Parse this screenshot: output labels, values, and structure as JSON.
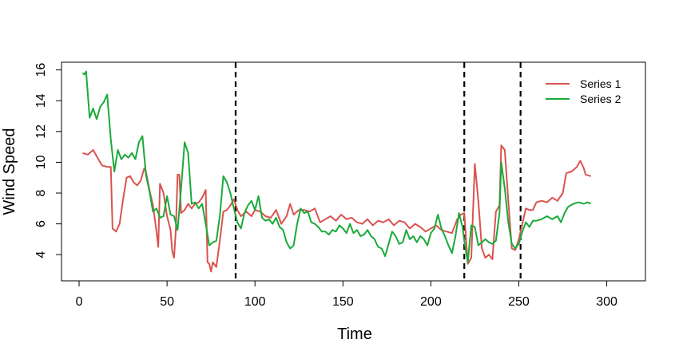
{
  "chart_data": {
    "type": "line",
    "title": "",
    "xlabel": "Time",
    "ylabel": "Wind Speed",
    "xlim": [
      -10,
      322
    ],
    "ylim": [
      2.3,
      16.5
    ],
    "x_ticks": [
      0,
      50,
      100,
      150,
      200,
      250,
      300
    ],
    "y_ticks": [
      4,
      6,
      8,
      10,
      12,
      14,
      16
    ],
    "grid": false,
    "legend_position": "top-right",
    "vlines": [
      89,
      219,
      251
    ],
    "vline_style": "dashed",
    "series": [
      {
        "name": "Series 1",
        "color": "#d9534f",
        "points": [
          [
            2,
            10.6
          ],
          [
            5,
            10.5
          ],
          [
            8,
            10.8
          ],
          [
            10,
            10.4
          ],
          [
            13,
            9.8
          ],
          [
            16,
            9.7
          ],
          [
            18,
            9.7
          ],
          [
            19,
            5.7
          ],
          [
            21,
            5.5
          ],
          [
            23,
            6.0
          ],
          [
            25,
            7.6
          ],
          [
            27,
            9.0
          ],
          [
            29,
            9.1
          ],
          [
            31,
            8.7
          ],
          [
            33,
            8.5
          ],
          [
            35,
            8.8
          ],
          [
            37,
            9.6
          ],
          [
            38,
            9.4
          ],
          [
            40,
            8.2
          ],
          [
            42,
            7.2
          ],
          [
            44,
            5.5
          ],
          [
            45,
            4.5
          ],
          [
            46,
            8.6
          ],
          [
            48,
            8.0
          ],
          [
            50,
            6.5
          ],
          [
            52,
            5.6
          ],
          [
            53,
            4.2
          ],
          [
            54,
            3.8
          ],
          [
            55,
            5.6
          ],
          [
            56,
            9.2
          ],
          [
            57,
            9.2
          ],
          [
            58,
            6.7
          ],
          [
            60,
            6.9
          ],
          [
            62,
            7.3
          ],
          [
            64,
            7.0
          ],
          [
            66,
            7.3
          ],
          [
            68,
            7.4
          ],
          [
            70,
            7.7
          ],
          [
            72,
            8.2
          ],
          [
            73,
            3.5
          ],
          [
            74,
            3.4
          ],
          [
            75,
            2.9
          ],
          [
            76,
            3.5
          ],
          [
            78,
            3.2
          ],
          [
            80,
            4.9
          ],
          [
            82,
            6.8
          ],
          [
            84,
            6.9
          ],
          [
            86,
            7.2
          ],
          [
            88,
            7.6
          ],
          [
            90,
            6.9
          ],
          [
            92,
            6.5
          ],
          [
            95,
            6.8
          ],
          [
            98,
            6.5
          ],
          [
            100,
            6.9
          ],
          [
            103,
            6.8
          ],
          [
            106,
            6.5
          ],
          [
            109,
            6.4
          ],
          [
            112,
            6.9
          ],
          [
            115,
            6.0
          ],
          [
            118,
            6.5
          ],
          [
            120,
            7.3
          ],
          [
            122,
            6.6
          ],
          [
            125,
            6.9
          ],
          [
            128,
            6.9
          ],
          [
            131,
            6.8
          ],
          [
            134,
            7.0
          ],
          [
            137,
            6.1
          ],
          [
            140,
            6.3
          ],
          [
            143,
            6.5
          ],
          [
            146,
            6.2
          ],
          [
            149,
            6.6
          ],
          [
            152,
            6.3
          ],
          [
            155,
            6.4
          ],
          [
            158,
            6.1
          ],
          [
            161,
            6.0
          ],
          [
            164,
            6.3
          ],
          [
            167,
            5.9
          ],
          [
            170,
            6.2
          ],
          [
            173,
            6.1
          ],
          [
            176,
            6.3
          ],
          [
            179,
            5.9
          ],
          [
            182,
            6.2
          ],
          [
            185,
            6.1
          ],
          [
            188,
            5.7
          ],
          [
            191,
            6.0
          ],
          [
            194,
            5.8
          ],
          [
            197,
            5.5
          ],
          [
            200,
            5.7
          ],
          [
            203,
            5.9
          ],
          [
            206,
            5.6
          ],
          [
            209,
            5.5
          ],
          [
            212,
            5.4
          ],
          [
            215,
            6.3
          ],
          [
            217,
            6.6
          ],
          [
            219,
            6.7
          ],
          [
            221,
            3.4
          ],
          [
            223,
            3.8
          ],
          [
            225,
            9.9
          ],
          [
            227,
            7.5
          ],
          [
            229,
            4.4
          ],
          [
            231,
            3.8
          ],
          [
            233,
            4.0
          ],
          [
            235,
            3.7
          ],
          [
            237,
            6.8
          ],
          [
            239,
            7.2
          ],
          [
            240,
            11.1
          ],
          [
            242,
            10.8
          ],
          [
            244,
            7.5
          ],
          [
            246,
            4.4
          ],
          [
            248,
            4.3
          ],
          [
            250,
            5.0
          ],
          [
            252,
            6.0
          ],
          [
            254,
            7.0
          ],
          [
            256,
            6.9
          ],
          [
            258,
            6.9
          ],
          [
            260,
            7.4
          ],
          [
            263,
            7.5
          ],
          [
            266,
            7.4
          ],
          [
            269,
            7.7
          ],
          [
            272,
            7.5
          ],
          [
            275,
            8.0
          ],
          [
            277,
            9.3
          ],
          [
            280,
            9.4
          ],
          [
            283,
            9.7
          ],
          [
            285,
            10.1
          ],
          [
            287,
            9.6
          ],
          [
            288,
            9.2
          ],
          [
            291,
            9.1
          ]
        ]
      },
      {
        "name": "Series 2",
        "color": "#1aaa3a",
        "points": [
          [
            2,
            15.8
          ],
          [
            3,
            15.7
          ],
          [
            4,
            15.9
          ],
          [
            6,
            12.9
          ],
          [
            8,
            13.5
          ],
          [
            10,
            12.8
          ],
          [
            12,
            13.6
          ],
          [
            14,
            13.9
          ],
          [
            16,
            14.4
          ],
          [
            18,
            11.5
          ],
          [
            20,
            9.4
          ],
          [
            22,
            10.8
          ],
          [
            24,
            10.2
          ],
          [
            26,
            10.5
          ],
          [
            28,
            10.3
          ],
          [
            30,
            10.6
          ],
          [
            32,
            10.2
          ],
          [
            34,
            11.3
          ],
          [
            36,
            11.7
          ],
          [
            38,
            9.2
          ],
          [
            40,
            8.1
          ],
          [
            42,
            6.8
          ],
          [
            44,
            7.0
          ],
          [
            46,
            6.4
          ],
          [
            48,
            6.5
          ],
          [
            50,
            7.8
          ],
          [
            52,
            6.6
          ],
          [
            54,
            6.5
          ],
          [
            56,
            5.6
          ],
          [
            58,
            8.3
          ],
          [
            60,
            11.3
          ],
          [
            62,
            10.6
          ],
          [
            64,
            7.3
          ],
          [
            66,
            7.4
          ],
          [
            68,
            7.0
          ],
          [
            70,
            7.3
          ],
          [
            72,
            6.0
          ],
          [
            74,
            4.6
          ],
          [
            76,
            4.8
          ],
          [
            78,
            4.9
          ],
          [
            80,
            6.5
          ],
          [
            82,
            9.1
          ],
          [
            84,
            8.7
          ],
          [
            86,
            8.0
          ],
          [
            88,
            7.0
          ],
          [
            90,
            6.1
          ],
          [
            92,
            5.7
          ],
          [
            94,
            6.7
          ],
          [
            96,
            7.2
          ],
          [
            98,
            7.5
          ],
          [
            100,
            6.9
          ],
          [
            102,
            7.8
          ],
          [
            104,
            6.4
          ],
          [
            106,
            6.2
          ],
          [
            108,
            6.3
          ],
          [
            110,
            6.0
          ],
          [
            112,
            6.4
          ],
          [
            114,
            5.8
          ],
          [
            116,
            5.6
          ],
          [
            118,
            4.8
          ],
          [
            120,
            4.4
          ],
          [
            122,
            4.6
          ],
          [
            124,
            6.0
          ],
          [
            126,
            7.0
          ],
          [
            128,
            6.7
          ],
          [
            130,
            6.8
          ],
          [
            132,
            6.1
          ],
          [
            134,
            6.0
          ],
          [
            136,
            5.8
          ],
          [
            138,
            5.5
          ],
          [
            140,
            5.5
          ],
          [
            142,
            5.3
          ],
          [
            144,
            5.6
          ],
          [
            146,
            5.5
          ],
          [
            148,
            5.9
          ],
          [
            150,
            5.7
          ],
          [
            152,
            5.4
          ],
          [
            154,
            6.0
          ],
          [
            156,
            5.4
          ],
          [
            158,
            5.6
          ],
          [
            160,
            5.2
          ],
          [
            162,
            5.3
          ],
          [
            164,
            5.6
          ],
          [
            166,
            5.2
          ],
          [
            168,
            5.0
          ],
          [
            170,
            4.5
          ],
          [
            172,
            4.4
          ],
          [
            174,
            3.9
          ],
          [
            176,
            4.7
          ],
          [
            178,
            5.5
          ],
          [
            180,
            5.2
          ],
          [
            182,
            4.7
          ],
          [
            184,
            4.8
          ],
          [
            186,
            5.6
          ],
          [
            188,
            5.0
          ],
          [
            190,
            5.2
          ],
          [
            192,
            4.8
          ],
          [
            194,
            5.2
          ],
          [
            196,
            5.0
          ],
          [
            198,
            4.6
          ],
          [
            200,
            5.4
          ],
          [
            202,
            5.7
          ],
          [
            204,
            6.6
          ],
          [
            206,
            5.7
          ],
          [
            208,
            5.2
          ],
          [
            210,
            4.6
          ],
          [
            212,
            4.1
          ],
          [
            214,
            5.2
          ],
          [
            216,
            6.7
          ],
          [
            218,
            5.8
          ],
          [
            219,
            4.9
          ],
          [
            221,
            3.5
          ],
          [
            223,
            5.9
          ],
          [
            225,
            5.8
          ],
          [
            227,
            4.6
          ],
          [
            229,
            4.8
          ],
          [
            231,
            5.0
          ],
          [
            233,
            4.8
          ],
          [
            235,
            4.7
          ],
          [
            237,
            4.9
          ],
          [
            239,
            6.7
          ],
          [
            240,
            10.0
          ],
          [
            242,
            8.3
          ],
          [
            244,
            6.1
          ],
          [
            246,
            4.7
          ],
          [
            248,
            4.4
          ],
          [
            250,
            4.7
          ],
          [
            252,
            5.5
          ],
          [
            254,
            6.1
          ],
          [
            256,
            5.8
          ],
          [
            258,
            6.2
          ],
          [
            260,
            6.2
          ],
          [
            263,
            6.3
          ],
          [
            266,
            6.5
          ],
          [
            269,
            6.3
          ],
          [
            272,
            6.5
          ],
          [
            274,
            6.1
          ],
          [
            276,
            6.7
          ],
          [
            278,
            7.1
          ],
          [
            281,
            7.3
          ],
          [
            284,
            7.4
          ],
          [
            287,
            7.3
          ],
          [
            289,
            7.4
          ],
          [
            291,
            7.3
          ]
        ]
      }
    ]
  }
}
